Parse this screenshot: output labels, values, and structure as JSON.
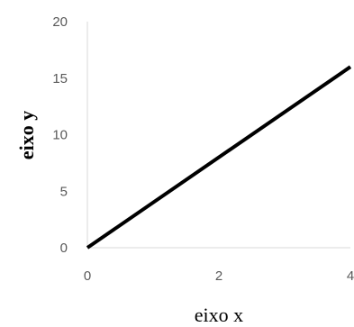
{
  "chart_data": {
    "type": "line",
    "title": "",
    "xlabel": "eixo x",
    "ylabel": "eixo y",
    "xlim": [
      0,
      4
    ],
    "ylim": [
      0,
      20
    ],
    "x_ticks": [
      0,
      2,
      4
    ],
    "y_ticks": [
      0,
      5,
      10,
      15,
      20
    ],
    "grid": false,
    "series": [
      {
        "x": [
          0,
          4
        ],
        "y": [
          0,
          16
        ],
        "color": "#000000"
      }
    ]
  },
  "colors": {
    "axis": "#d9d9d9",
    "tick_text": "#595959",
    "line": "#000000"
  }
}
